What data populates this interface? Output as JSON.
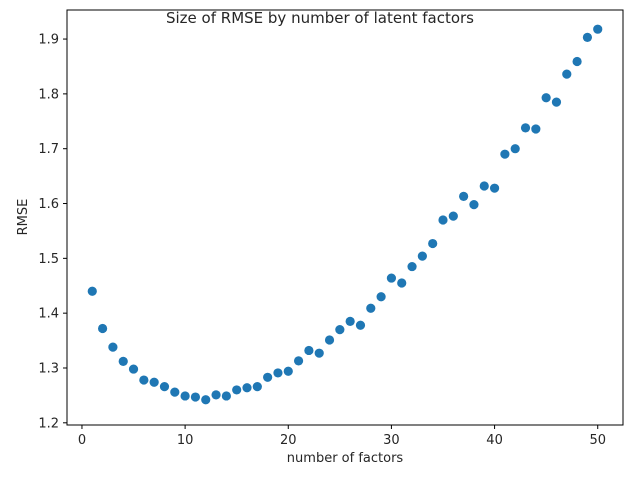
{
  "chart_data": {
    "type": "scatter",
    "title": "Size of RMSE by number of latent factors",
    "xlabel": "number of factors",
    "ylabel": "RMSE",
    "xlim": [
      -1.45,
      52.45
    ],
    "ylim": [
      1.196,
      1.953
    ],
    "xticks": [
      0,
      10,
      20,
      30,
      40,
      50
    ],
    "yticks": [
      1.2,
      1.3,
      1.4,
      1.5,
      1.6,
      1.7,
      1.8,
      1.9
    ],
    "xtick_labels": [
      "0",
      "10",
      "20",
      "30",
      "40",
      "50"
    ],
    "ytick_labels": [
      "1.2",
      "1.3",
      "1.4",
      "1.5",
      "1.6",
      "1.7",
      "1.8",
      "1.9"
    ],
    "grid": false,
    "marker_color": "#1f77b4",
    "x": [
      1,
      2,
      3,
      4,
      5,
      6,
      7,
      8,
      9,
      10,
      11,
      12,
      13,
      14,
      15,
      16,
      17,
      18,
      19,
      20,
      21,
      22,
      23,
      24,
      25,
      26,
      27,
      28,
      29,
      30,
      31,
      32,
      33,
      34,
      35,
      36,
      37,
      38,
      39,
      40,
      41,
      42,
      43,
      44,
      45,
      46,
      47,
      48,
      49,
      50
    ],
    "y": [
      1.44,
      1.372,
      1.338,
      1.312,
      1.298,
      1.278,
      1.274,
      1.266,
      1.256,
      1.249,
      1.247,
      1.242,
      1.251,
      1.249,
      1.26,
      1.264,
      1.266,
      1.283,
      1.291,
      1.294,
      1.313,
      1.332,
      1.327,
      1.351,
      1.37,
      1.385,
      1.378,
      1.409,
      1.43,
      1.464,
      1.455,
      1.485,
      1.504,
      1.527,
      1.57,
      1.577,
      1.613,
      1.598,
      1.632,
      1.628,
      1.69,
      1.7,
      1.738,
      1.736,
      1.793,
      1.785,
      1.836,
      1.859,
      1.903,
      1.918
    ]
  }
}
